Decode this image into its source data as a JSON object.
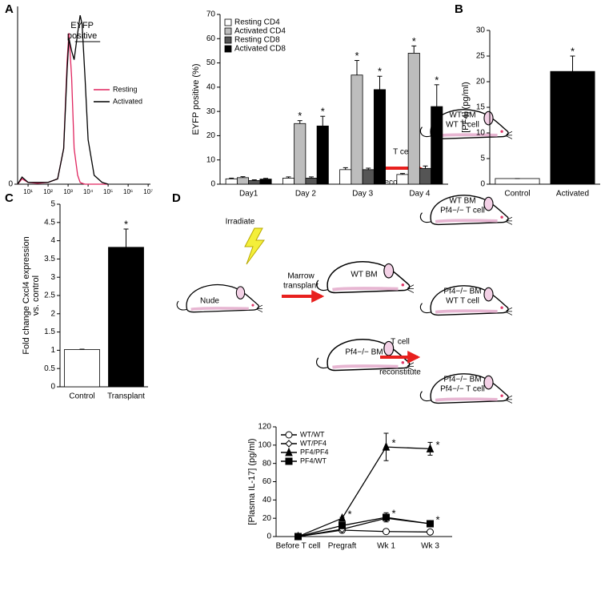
{
  "panels": [
    "A",
    "B",
    "C",
    "D"
  ],
  "chart_data": [
    {
      "type": "line",
      "xscale": "log",
      "x": [
        3,
        5,
        10,
        30,
        100,
        300,
        600,
        900,
        1100,
        1500,
        2000,
        3000,
        4000,
        5000,
        7000,
        10000,
        20000,
        50000,
        100000
      ],
      "series": [
        {
          "name": "Resting",
          "color": "#e0245e",
          "values": [
            0,
            3,
            1,
            0.5,
            1,
            3,
            20,
            70,
            85,
            60,
            20,
            5,
            1,
            0.5,
            0,
            0,
            0,
            0,
            0
          ]
        },
        {
          "name": "Activated",
          "color": "#000000",
          "values": [
            0,
            4,
            1,
            1,
            1,
            3,
            20,
            65,
            82,
            75,
            70,
            85,
            95,
            90,
            60,
            25,
            5,
            1,
            0
          ]
        }
      ],
      "xlim": [
        3,
        13000000
      ],
      "ylim": [
        0,
        100
      ],
      "xticks": [
        {
          "value": 10,
          "label": "10¹"
        },
        {
          "value": 100,
          "label": "10²"
        },
        {
          "value": 1000,
          "label": "10³"
        },
        {
          "value": 10000,
          "label": "10⁴"
        },
        {
          "value": 100000,
          "label": "10⁵"
        },
        {
          "value": 1000000,
          "label": "10⁶"
        },
        {
          "value": 10000000,
          "label": "10⁷"
        }
      ],
      "yticks": [
        0
      ],
      "legend": "right",
      "annotation": [
        "EYFP",
        "positive"
      ]
    },
    {
      "type": "bar",
      "categories": [
        "Day1",
        "Day 2",
        "Day 3",
        "Day 4"
      ],
      "series": [
        {
          "name": "Resting CD4",
          "color": "#ffffff",
          "values": [
            2.2,
            2.5,
            6,
            4
          ],
          "errors": [
            0.3,
            0.5,
            0.8,
            0.4
          ]
        },
        {
          "name": "Activated CD4",
          "color": "#bdbdbd",
          "values": [
            2.7,
            25,
            45,
            54
          ],
          "errors": [
            0.4,
            1.2,
            6,
            3
          ],
          "markers": [
            null,
            "*",
            "*",
            "*"
          ]
        },
        {
          "name": "Resting CD8",
          "color": "#555555",
          "values": [
            1.5,
            2.5,
            6,
            6.5
          ],
          "errors": [
            0.3,
            0.5,
            0.6,
            1
          ]
        },
        {
          "name": "Activated CD8",
          "color": "#000000",
          "values": [
            2.1,
            24,
            39,
            32
          ],
          "errors": [
            0.3,
            4,
            5.5,
            9
          ],
          "markers": [
            null,
            "*",
            "*",
            "*"
          ]
        }
      ],
      "ylabel": "EYFP positive (%)",
      "ylim": [
        0,
        70
      ],
      "yticks": [
        0,
        10,
        20,
        30,
        40,
        50,
        60,
        70
      ],
      "legend": "upper left"
    },
    {
      "type": "bar",
      "categories": [
        "Control",
        "Activated"
      ],
      "values": [
        1.1,
        22
      ],
      "errors": [
        0,
        3
      ],
      "colors": [
        "#ffffff",
        "#000000"
      ],
      "markers": [
        null,
        "*"
      ],
      "ylabel": "[PF4] (pg/ml)",
      "ylim": [
        0,
        30
      ],
      "yticks": [
        0,
        5,
        10,
        15,
        20,
        25,
        30
      ]
    },
    {
      "type": "bar",
      "categories": [
        "Control",
        "Transplant"
      ],
      "values": [
        1.02,
        3.82
      ],
      "errors": [
        0.01,
        0.5
      ],
      "colors": [
        "#ffffff",
        "#000000"
      ],
      "markers": [
        null,
        "*"
      ],
      "ylabel": [
        "Fold change Cxcl4 expression",
        "vs. control"
      ],
      "ylim": [
        0,
        5
      ],
      "yticks": [
        0,
        0.5,
        1,
        1.5,
        2,
        2.5,
        3,
        3.5,
        4,
        4.5,
        5
      ]
    },
    {
      "type": "line",
      "categories": [
        "Before T cell",
        "Pregraft",
        "Wk 1",
        "Wk 3"
      ],
      "series": [
        {
          "name": "WT/WT",
          "color": "#000000",
          "marker": "circle",
          "fill": "#ffffff",
          "values": [
            0,
            7,
            5.5,
            5
          ]
        },
        {
          "name": "WT/PF4",
          "color": "#000000",
          "marker": "diamond",
          "fill": "#ffffff",
          "values": [
            0,
            8,
            20,
            14
          ]
        },
        {
          "name": "PF4/PF4",
          "color": "#000000",
          "marker": "triangle",
          "fill": "#000000",
          "values": [
            0,
            20,
            98,
            96
          ],
          "errors": [
            0,
            1,
            15,
            7
          ],
          "markers": [
            null,
            "*",
            "*",
            "*"
          ]
        },
        {
          "name": "PF4/WT",
          "color": "#000000",
          "marker": "square",
          "fill": "#000000",
          "values": [
            0,
            12,
            21,
            14
          ],
          "errors": [
            0,
            2,
            5,
            3
          ],
          "markers": [
            null,
            null,
            "*",
            "*"
          ]
        }
      ],
      "ylabel": "[Plasma IL-17] (pg/ml)",
      "ylim": [
        0,
        120
      ],
      "yticks": [
        0,
        20,
        40,
        60,
        80,
        100,
        120
      ],
      "legend": "upper left"
    }
  ],
  "diagram": {
    "irradiate": "Irradiate",
    "nude": "Nude",
    "marrow_transplant": [
      "Marrow",
      "transplant"
    ],
    "t_cell_reconstitute": [
      [
        "T cell",
        "reconstitute"
      ],
      [
        "T cell",
        "reconstitute"
      ]
    ],
    "mice": [
      [
        "WT BM"
      ],
      [
        "Pf4−/− BM"
      ],
      [
        "WT BM",
        "WT T cell"
      ],
      [
        "WT BM",
        "Pf4−/− T cell"
      ],
      [
        "Pf4−/− BM",
        "WT T cell"
      ],
      [
        "Pf4−/− BM",
        "Pf4−/− T cell"
      ]
    ]
  }
}
